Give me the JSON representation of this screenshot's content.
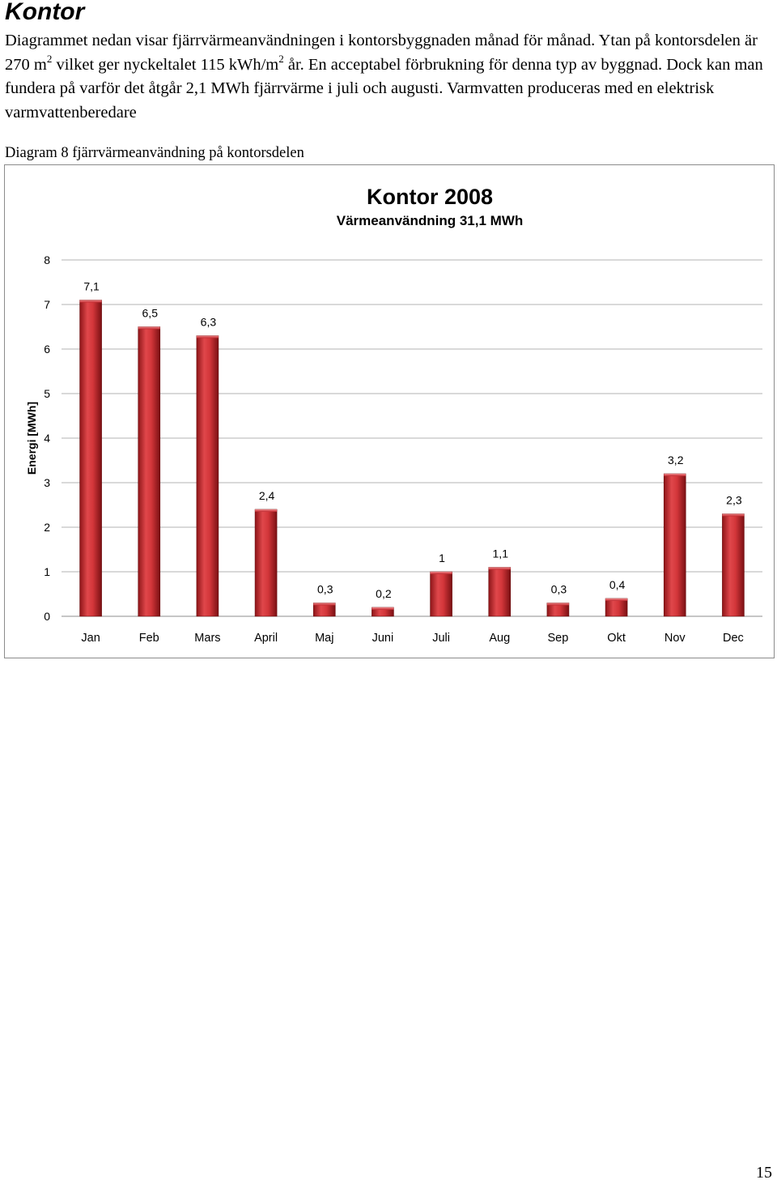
{
  "document": {
    "heading": "Kontor",
    "paragraph": {
      "p1": "Diagrammet nedan visar fjärrvärmeanvändningen i kontorsbyggnaden månad för månad. Ytan på kontorsdelen är 270 m",
      "sup1": "2",
      "p2": " vilket ger nyckeltalet 115 kWh/m",
      "sup2": "2",
      "p3": " år. En acceptabel förbrukning för denna typ av byggnad. Dock kan man fundera på varför det åtgår 2,1 MWh fjärrvärme i juli och augusti. Varmvatten produceras med en elektrisk varmvattenberedare"
    },
    "caption": "Diagram 8 fjärrvärmeanvändning på kontorsdelen",
    "page_number": "15"
  },
  "chart_data": {
    "type": "bar",
    "title": "Kontor 2008",
    "subtitle": "Värmeanvändning 31,1 MWh",
    "xlabel": "",
    "ylabel": "Energi [MWh]",
    "ylim": [
      0,
      8
    ],
    "yticks": [
      "0",
      "1",
      "2",
      "3",
      "4",
      "5",
      "6",
      "7",
      "8"
    ],
    "categories": [
      "Jan",
      "Feb",
      "Mars",
      "April",
      "Maj",
      "Juni",
      "Juli",
      "Aug",
      "Sep",
      "Okt",
      "Nov",
      "Dec"
    ],
    "values": [
      7.1,
      6.5,
      6.3,
      2.4,
      0.3,
      0.2,
      1,
      1.1,
      0.3,
      0.4,
      3.2,
      2.3
    ],
    "data_labels": [
      "7,1",
      "6,5",
      "6,3",
      "2,4",
      "0,3",
      "0,2",
      "1",
      "1,1",
      "0,3",
      "0,4",
      "3,2",
      "2,3"
    ],
    "grid": true,
    "legend": "none",
    "bar_color": "#c0272d"
  }
}
